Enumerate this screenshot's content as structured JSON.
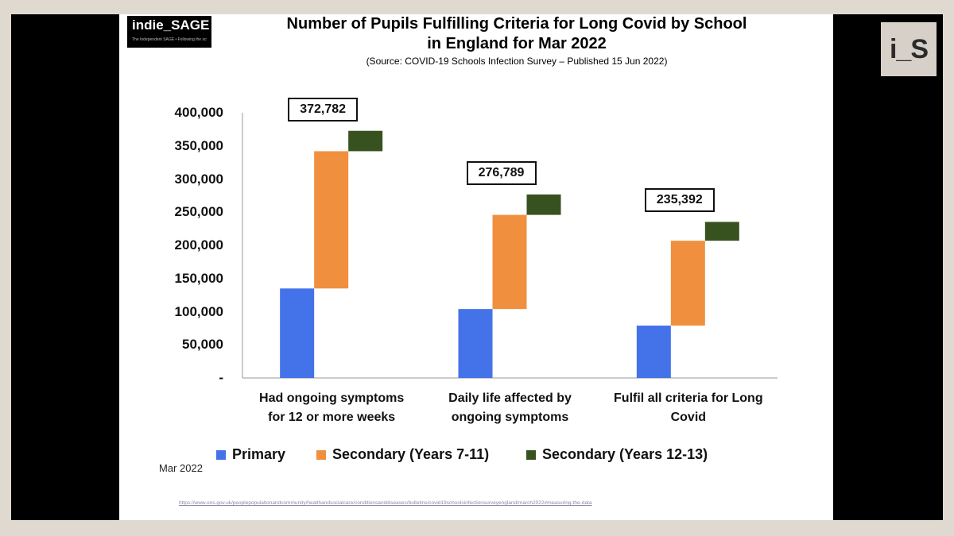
{
  "header": {
    "logo_text": "indie_SAGE",
    "logo_tagline": "The Independent SAGE • Following the science",
    "badge_text": "i_S"
  },
  "chart_data": {
    "type": "bar",
    "stacked": true,
    "title_line1": "Number of Pupils Fulfilling Criteria for Long Covid by School",
    "title_line2": "in England for Mar 2022",
    "subtitle": "(Source: COVID-19 Schools Infection Survey – Published 15 Jun 2022)",
    "categories": [
      [
        "Had ongoing symptoms",
        "for 12 or more weeks"
      ],
      [
        "Daily life affected by",
        "ongoing symptoms"
      ],
      [
        "Fulfil all criteria for Long",
        "Covid"
      ]
    ],
    "series": [
      {
        "name": "Primary",
        "color": "#4472e8",
        "values": [
          135000,
          104000,
          79000
        ]
      },
      {
        "name": "Secondary (Years 7-11)",
        "color": "#f0903f",
        "values": [
          207000,
          142000,
          128000
        ]
      },
      {
        "name": "Secondary (Years 12-13)",
        "color": "#37521f",
        "values": [
          30782,
          30789,
          28392
        ]
      }
    ],
    "totals": [
      "372,782",
      "276,789",
      "235,392"
    ],
    "y_ticks": [
      "-",
      "50,000",
      "100,000",
      "150,000",
      "200,000",
      "250,000",
      "300,000",
      "350,000",
      "400,000"
    ],
    "ylim": [
      0,
      400000
    ],
    "legend_position": "bottom"
  },
  "footer": {
    "date_label": "Mar 2022",
    "source_url": "https://www.ons.gov.uk/peoplepopulationandcommunity/healthandsocialcare/conditionsanddiseases/bulletins/covid19schoolsinfectionsurveyengland/march2022#measuring-the-data"
  }
}
